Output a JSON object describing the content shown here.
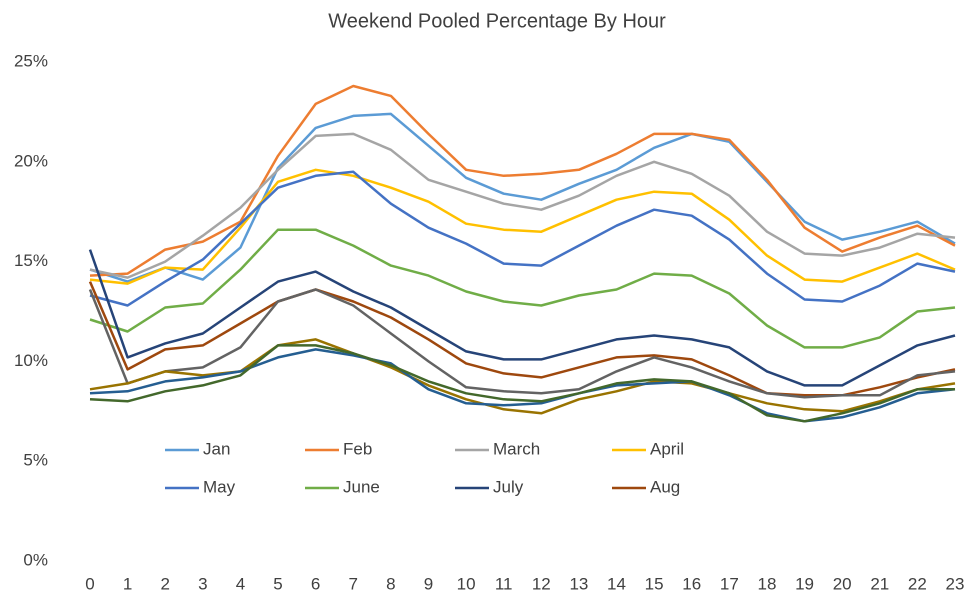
{
  "chart_data": {
    "type": "line",
    "title": "Weekend Pooled Percentage By Hour",
    "categories": [
      "0",
      "1",
      "2",
      "3",
      "4",
      "5",
      "6",
      "7",
      "8",
      "9",
      "10",
      "11",
      "12",
      "13",
      "14",
      "15",
      "16",
      "17",
      "18",
      "19",
      "20",
      "21",
      "22",
      "23"
    ],
    "ylim": [
      0,
      25
    ],
    "yticks": [
      {
        "value": 0,
        "label": "0%"
      },
      {
        "value": 5,
        "label": "5%"
      },
      {
        "value": 10,
        "label": "10%"
      },
      {
        "value": 15,
        "label": "15%"
      },
      {
        "value": 20,
        "label": "20%"
      },
      {
        "value": 25,
        "label": "25%"
      }
    ],
    "grid": false,
    "series": [
      {
        "name": "Jan",
        "color": "#5b9bd5",
        "values": [
          14.6,
          14.0,
          14.7,
          14.1,
          15.7,
          19.7,
          21.7,
          22.3,
          22.4,
          20.8,
          19.2,
          18.4,
          18.1,
          18.9,
          19.6,
          20.7,
          21.4,
          21.0,
          19.0,
          17.0,
          16.1,
          16.5,
          17.0,
          15.9
        ]
      },
      {
        "name": "Feb",
        "color": "#ed7d31",
        "values": [
          14.3,
          14.4,
          15.6,
          16.0,
          17.0,
          20.3,
          22.9,
          23.8,
          23.3,
          21.4,
          19.6,
          19.3,
          19.4,
          19.6,
          20.4,
          21.4,
          21.4,
          21.1,
          19.1,
          16.7,
          15.5,
          16.2,
          16.8,
          15.8
        ]
      },
      {
        "name": "March",
        "color": "#a5a5a5",
        "values": [
          14.6,
          14.2,
          15.0,
          16.3,
          17.7,
          19.6,
          21.3,
          21.4,
          20.6,
          19.1,
          18.5,
          17.9,
          17.6,
          18.3,
          19.3,
          20.0,
          19.4,
          18.3,
          16.5,
          15.4,
          15.3,
          15.7,
          16.4,
          16.2
        ]
      },
      {
        "name": "April",
        "color": "#ffc000",
        "values": [
          14.1,
          13.9,
          14.7,
          14.6,
          16.7,
          19.0,
          19.6,
          19.3,
          18.7,
          18.0,
          16.9,
          16.6,
          16.5,
          17.3,
          18.1,
          18.5,
          18.4,
          17.1,
          15.3,
          14.1,
          14.0,
          14.7,
          15.4,
          14.6
        ]
      },
      {
        "name": "May",
        "color": "#4472c4",
        "values": [
          13.3,
          12.8,
          14.0,
          15.1,
          16.9,
          18.7,
          19.3,
          19.5,
          17.9,
          16.7,
          15.9,
          14.9,
          14.8,
          15.8,
          16.8,
          17.6,
          17.3,
          16.1,
          14.4,
          13.1,
          13.0,
          13.8,
          14.9,
          14.5
        ]
      },
      {
        "name": "June",
        "color": "#70ad47",
        "values": [
          12.1,
          11.5,
          12.7,
          12.9,
          14.6,
          16.6,
          16.6,
          15.8,
          14.8,
          14.3,
          13.5,
          13.0,
          12.8,
          13.3,
          13.6,
          14.4,
          14.3,
          13.4,
          11.8,
          10.7,
          10.7,
          11.2,
          12.5,
          12.7
        ]
      },
      {
        "name": "July",
        "color": "#264478",
        "values": [
          15.6,
          10.2,
          10.9,
          11.4,
          12.7,
          14.0,
          14.5,
          13.5,
          12.7,
          11.6,
          10.5,
          10.1,
          10.1,
          10.6,
          11.1,
          11.3,
          11.1,
          10.7,
          9.5,
          8.8,
          8.8,
          9.8,
          10.8,
          11.3
        ]
      },
      {
        "name": "Aug",
        "color": "#9e480e",
        "values": [
          14.0,
          9.6,
          10.6,
          10.8,
          11.9,
          13.0,
          13.6,
          13.0,
          12.2,
          11.1,
          9.9,
          9.4,
          9.2,
          9.7,
          10.2,
          10.3,
          10.1,
          9.3,
          8.4,
          8.3,
          8.3,
          8.7,
          9.2,
          9.6
        ]
      },
      {
        "color": "#636363",
        "values": [
          13.6,
          8.9,
          9.5,
          9.7,
          10.7,
          13.0,
          13.6,
          12.8,
          11.4,
          10.0,
          8.7,
          8.5,
          8.4,
          8.6,
          9.5,
          10.2,
          9.7,
          9.0,
          8.4,
          8.2,
          8.3,
          8.3,
          9.3,
          9.5
        ]
      },
      {
        "color": "#997300",
        "values": [
          8.6,
          8.9,
          9.5,
          9.3,
          9.5,
          10.8,
          11.1,
          10.4,
          9.7,
          8.8,
          8.1,
          7.6,
          7.4,
          8.1,
          8.5,
          9.0,
          8.9,
          8.4,
          7.9,
          7.6,
          7.5,
          8.0,
          8.6,
          8.9
        ]
      },
      {
        "color": "#255e91",
        "values": [
          8.4,
          8.5,
          9.0,
          9.2,
          9.5,
          10.2,
          10.6,
          10.3,
          9.9,
          8.6,
          7.9,
          7.8,
          7.9,
          8.4,
          8.8,
          8.9,
          9.0,
          8.3,
          7.4,
          7.0,
          7.2,
          7.7,
          8.4,
          8.6
        ]
      },
      {
        "color": "#43682b",
        "values": [
          8.1,
          8.0,
          8.5,
          8.8,
          9.3,
          10.8,
          10.8,
          10.4,
          9.8,
          9.0,
          8.4,
          8.1,
          8.0,
          8.4,
          8.9,
          9.1,
          9.0,
          8.4,
          7.3,
          7.0,
          7.4,
          7.9,
          8.6,
          8.6
        ]
      }
    ]
  }
}
